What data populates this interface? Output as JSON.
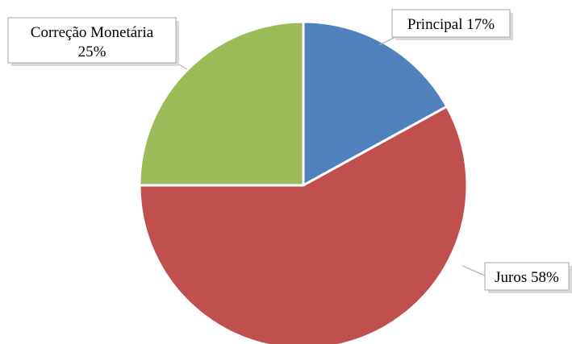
{
  "chart_data": {
    "type": "pie",
    "title": "",
    "slices": [
      {
        "label": "Principal",
        "value": 17,
        "display": "Principal  17%",
        "color": "#4f81bd"
      },
      {
        "label": "Juros",
        "value": 58,
        "display": "Juros 58%",
        "color": "#c0504d"
      },
      {
        "label": "Correção Monetária",
        "value": 25,
        "display_lines": [
          "Correção Monetária",
          "25%"
        ],
        "color": "#9bbb59"
      }
    ],
    "start": "12 o'clock",
    "direction": "clockwise",
    "legend": "none",
    "data_labels": "callouts"
  }
}
